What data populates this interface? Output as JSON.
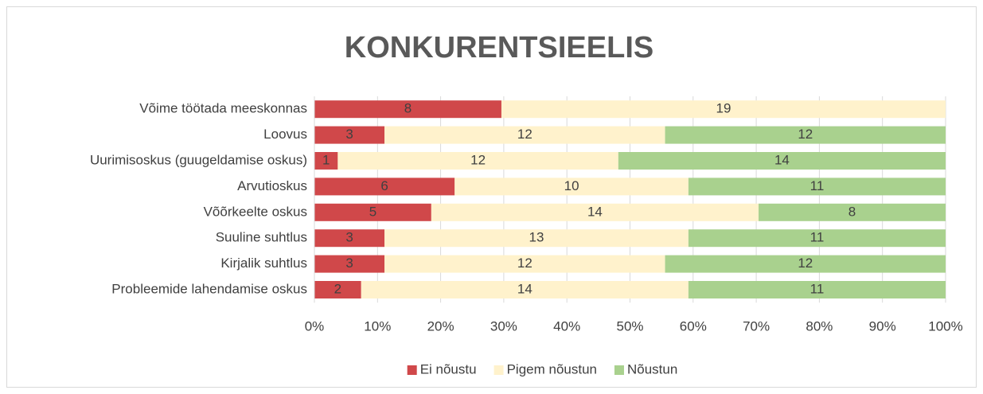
{
  "chart_data": {
    "type": "bar",
    "orientation": "horizontal",
    "stacked": "percent",
    "title": "KONKURENTSIEELIS",
    "categories": [
      "Võime töötada meeskonnas",
      "Loovus",
      "Uurimisoskus (guugeldamise oskus)",
      "Arvutioskus",
      "Võõrkeelte oskus",
      "Suuline suhtlus",
      "Kirjalik suhtlus",
      "Probleemide lahendamise oskus"
    ],
    "series": [
      {
        "name": "Ei nõustu",
        "color": "#d0484a",
        "values": [
          8,
          3,
          1,
          6,
          5,
          3,
          3,
          2
        ]
      },
      {
        "name": "Pigem nõustun",
        "color": "#fff2cc",
        "values": [
          19,
          12,
          12,
          10,
          14,
          13,
          12,
          14
        ]
      },
      {
        "name": "Nõustun",
        "color": "#a9d18e",
        "values": [
          0,
          12,
          14,
          11,
          8,
          11,
          12,
          11
        ]
      }
    ],
    "xlim": [
      0,
      100
    ],
    "xticks": [
      {
        "value": 0,
        "label": "0%"
      },
      {
        "value": 10,
        "label": "10%"
      },
      {
        "value": 20,
        "label": "20%"
      },
      {
        "value": 30,
        "label": "30%"
      },
      {
        "value": 40,
        "label": "40%"
      },
      {
        "value": 50,
        "label": "50%"
      },
      {
        "value": 60,
        "label": "60%"
      },
      {
        "value": 70,
        "label": "70%"
      },
      {
        "value": 80,
        "label": "80%"
      },
      {
        "value": 90,
        "label": "90%"
      },
      {
        "value": 100,
        "label": "100%"
      }
    ],
    "grid": true,
    "legend": "bottom"
  }
}
